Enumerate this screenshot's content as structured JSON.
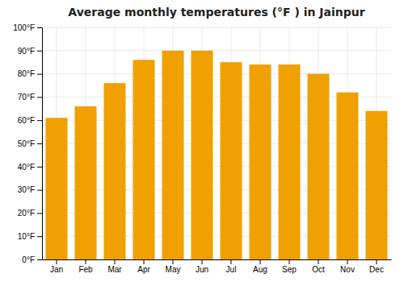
{
  "chart_data": {
    "type": "bar",
    "title": "Average monthly temperatures (°F ) in Jainpur",
    "categories": [
      "Jan",
      "Feb",
      "Mar",
      "Apr",
      "May",
      "Jun",
      "Jul",
      "Aug",
      "Sep",
      "Oct",
      "Nov",
      "Dec"
    ],
    "values": [
      61,
      66,
      76,
      86,
      90,
      90,
      85,
      84,
      84,
      80,
      72,
      64
    ],
    "color": "#F0A000",
    "ylim": [
      0,
      100
    ],
    "yticks": [
      {
        "value": 0,
        "label": "0°F"
      },
      {
        "value": 10,
        "label": "10°F"
      },
      {
        "value": 20,
        "label": "20°F"
      },
      {
        "value": 30,
        "label": "30°F"
      },
      {
        "value": 40,
        "label": "40°F"
      },
      {
        "value": 50,
        "label": "50°F"
      },
      {
        "value": 60,
        "label": "60°F"
      },
      {
        "value": 70,
        "label": "70°F"
      },
      {
        "value": 80,
        "label": "80°F"
      },
      {
        "value": 90,
        "label": "90°F"
      },
      {
        "value": 100,
        "label": "100°F"
      }
    ],
    "grid": true
  }
}
